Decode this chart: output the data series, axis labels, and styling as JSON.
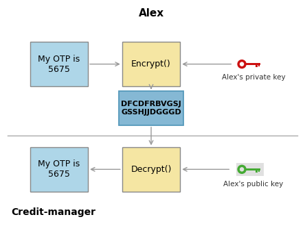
{
  "bg_color": "#ffffff",
  "title_alex": "Alex",
  "title_credit": "Credit-manager",
  "box_yellow": "#f5e6a3",
  "box_blue_light": "#aed6e8",
  "box_blue_cipher": "#85b8d4",
  "border_gray": "#888888",
  "border_blue": "#5599bb",
  "arrow_color": "#999999",
  "encrypt_label": "Encrypt()",
  "decrypt_label": "Decrypt()",
  "otp_label": "My OTP is\n5675",
  "cipher_label": "DFCDFRBVGSJ\nGSSHJJDGGGD",
  "private_key_label": "Alex's private key",
  "public_key_label": "Alex's public key",
  "key_red": "#cc1111",
  "key_green": "#44aa33",
  "key_bg": "#e0e0e0",
  "divider_color": "#aaaaaa",
  "font_size_title": 11,
  "font_size_box": 9,
  "font_size_cipher": 8,
  "font_size_label": 7.5,
  "font_size_credit": 10
}
